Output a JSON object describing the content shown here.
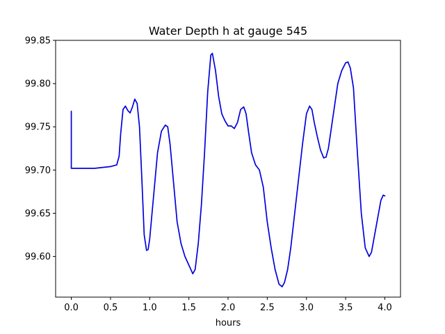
{
  "chart_data": {
    "type": "line",
    "title": "Water Depth h at gauge 545",
    "xlabel": "hours",
    "ylabel": "",
    "xlim": [
      -0.2,
      4.2
    ],
    "ylim": [
      99.553,
      99.85
    ],
    "grid": false,
    "x_ticks": [
      0.0,
      0.5,
      1.0,
      1.5,
      2.0,
      2.5,
      3.0,
      3.5,
      4.0
    ],
    "x_tick_labels": [
      "0.0",
      "0.5",
      "1.0",
      "1.5",
      "2.0",
      "2.5",
      "3.0",
      "3.5",
      "4.0"
    ],
    "y_ticks": [
      99.6,
      99.65,
      99.7,
      99.75,
      99.8,
      99.85
    ],
    "y_tick_labels": [
      "99.60",
      "99.65",
      "99.70",
      "99.75",
      "99.80",
      "99.85"
    ],
    "series": [
      {
        "color": "#0000dd",
        "x": [
          0.0,
          0.0,
          0.02,
          0.1,
          0.2,
          0.3,
          0.4,
          0.5,
          0.58,
          0.61,
          0.63,
          0.66,
          0.69,
          0.72,
          0.75,
          0.78,
          0.81,
          0.84,
          0.87,
          0.9,
          0.93,
          0.96,
          0.98,
          1.0,
          1.03,
          1.06,
          1.1,
          1.15,
          1.2,
          1.23,
          1.26,
          1.3,
          1.35,
          1.4,
          1.45,
          1.5,
          1.55,
          1.58,
          1.62,
          1.66,
          1.7,
          1.74,
          1.78,
          1.8,
          1.84,
          1.88,
          1.92,
          1.96,
          2.0,
          2.04,
          2.08,
          2.12,
          2.16,
          2.2,
          2.23,
          2.26,
          2.3,
          2.35,
          2.4,
          2.45,
          2.5,
          2.55,
          2.6,
          2.65,
          2.69,
          2.72,
          2.76,
          2.8,
          2.85,
          2.9,
          2.95,
          3.0,
          3.04,
          3.07,
          3.1,
          3.14,
          3.18,
          3.22,
          3.25,
          3.28,
          3.32,
          3.36,
          3.4,
          3.45,
          3.5,
          3.53,
          3.56,
          3.6,
          3.65,
          3.7,
          3.75,
          3.8,
          3.83,
          3.87,
          3.91,
          3.95,
          3.98,
          4.0
        ],
        "values": [
          99.768,
          99.702,
          99.702,
          99.702,
          99.702,
          99.702,
          99.703,
          99.704,
          99.706,
          99.716,
          99.742,
          99.77,
          99.774,
          99.769,
          99.766,
          99.773,
          99.782,
          99.777,
          99.75,
          99.69,
          99.625,
          99.607,
          99.608,
          99.62,
          99.65,
          99.68,
          99.72,
          99.745,
          99.752,
          99.75,
          99.73,
          99.69,
          99.64,
          99.615,
          99.6,
          99.59,
          99.58,
          99.585,
          99.615,
          99.66,
          99.72,
          99.79,
          99.833,
          99.835,
          99.815,
          99.785,
          99.765,
          99.757,
          99.751,
          99.751,
          99.748,
          99.755,
          99.77,
          99.773,
          99.765,
          99.745,
          99.72,
          99.706,
          99.7,
          99.68,
          99.64,
          99.61,
          99.585,
          99.568,
          99.565,
          99.57,
          99.585,
          99.61,
          99.65,
          99.69,
          99.73,
          99.765,
          99.774,
          99.77,
          99.755,
          99.738,
          99.723,
          99.714,
          99.715,
          99.725,
          99.75,
          99.775,
          99.8,
          99.815,
          99.824,
          99.825,
          99.818,
          99.795,
          99.72,
          99.65,
          99.61,
          99.6,
          99.605,
          99.625,
          99.645,
          99.665,
          99.671,
          99.67
        ]
      }
    ]
  }
}
